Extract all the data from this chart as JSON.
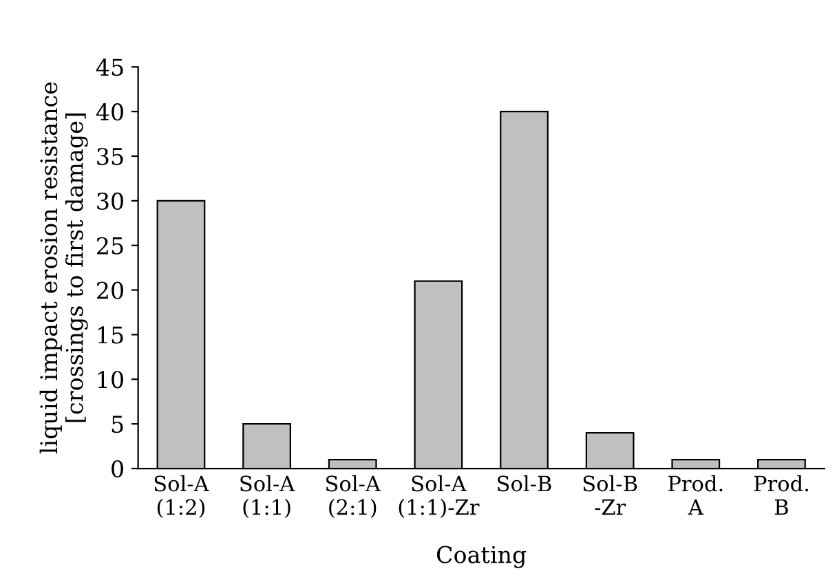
{
  "chart_data": {
    "type": "bar",
    "categories": [
      "Sol-A\n(1:2)",
      "Sol-A\n(1:1)",
      "Sol-A\n(2:1)",
      "Sol-A\n(1:1)-Zr",
      "Sol-B",
      "Sol-B\n-Zr",
      "Prod.\nA",
      "Prod.\nB"
    ],
    "values": [
      30,
      5,
      1,
      21,
      40,
      4,
      1,
      1
    ],
    "color": "#c0c0c0",
    "xlabel": "Coating",
    "ylabel": "liquid impact erosion resistance\n[crossings to first damage]",
    "ylim": [
      0,
      45
    ],
    "yticks": [
      0,
      5,
      10,
      15,
      20,
      25,
      30,
      35,
      40,
      45
    ],
    "grid": false,
    "legend": false
  }
}
